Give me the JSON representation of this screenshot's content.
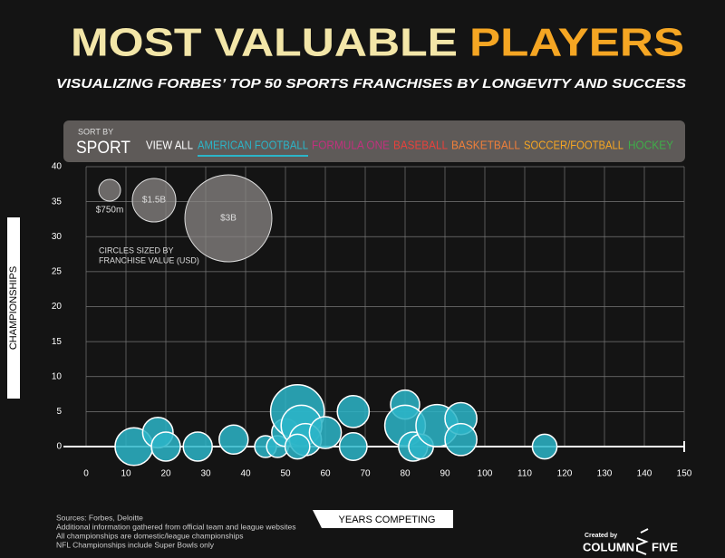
{
  "header": {
    "title_a": "MOST VALUABLE",
    "title_b": "PLAYERS",
    "subtitle": "VISUALIZING FORBES’ TOP 50 SPORTS FRANCHISES BY LONGEVITY AND SUCCESS"
  },
  "filter": {
    "sort_by": "SORT BY",
    "sort": "SPORT",
    "view_all": "VIEW ALL"
  },
  "chart_data": {
    "type": "bubble",
    "xlabel": "YEARS COMPETING",
    "ylabel": "CHAMPIONSHIPS",
    "xlim": [
      0,
      150
    ],
    "ylim": [
      0,
      40
    ],
    "xticks": [
      0,
      10,
      20,
      30,
      40,
      50,
      60,
      70,
      80,
      90,
      100,
      110,
      120,
      130,
      140,
      150
    ],
    "yticks": [
      0,
      5,
      10,
      15,
      20,
      25,
      30,
      35,
      40
    ],
    "grid": true,
    "series": [
      {
        "name": "AMERICAN FOOTBALL",
        "color": "#2bb5c8",
        "x": [
          12,
          18,
          20,
          28,
          37,
          45,
          48,
          50,
          53,
          54,
          55,
          53,
          60,
          67,
          67,
          80,
          80,
          82,
          84,
          88,
          94,
          94,
          115
        ],
        "values": [
          0,
          2,
          0,
          0,
          1,
          0,
          0,
          2,
          5,
          3,
          1,
          0,
          2,
          5,
          0,
          6,
          3,
          0,
          0,
          3,
          4,
          1,
          0
        ],
        "sizes": [
          1.3,
          1.05,
          1.0,
          1.0,
          1.0,
          0.75,
          0.75,
          0.95,
          1.85,
          1.4,
          1.1,
          0.85,
          1.1,
          1.1,
          0.95,
          1.0,
          1.4,
          1.0,
          0.85,
          1.45,
          1.1,
          1.1,
          0.85
        ]
      },
      {
        "name": "FORMULA ONE",
        "color": "#c2307e",
        "x": [],
        "values": [],
        "sizes": []
      },
      {
        "name": "BASEBALL",
        "color": "#e8413c",
        "x": [],
        "values": [],
        "sizes": []
      },
      {
        "name": "BASKETBALL",
        "color": "#ef7f3a",
        "x": [],
        "values": [],
        "sizes": []
      },
      {
        "name": "SOCCER/FOOTBALL",
        "color": "#f5a623",
        "x": [],
        "values": [],
        "sizes": []
      },
      {
        "name": "HOCKEY",
        "color": "#3fae49",
        "x": [],
        "values": [],
        "sizes": []
      }
    ],
    "size_legend": {
      "sizes": [
        0.75,
        1.5,
        3
      ],
      "labels": [
        "$750m",
        "$1.5B",
        "$3B"
      ],
      "note": [
        "CIRCLES SIZED BY",
        "FRANCHISE VALUE (USD)"
      ]
    }
  },
  "sources": [
    "Sources: Forbes, Deloitte",
    "Additional information gathered from official team and league websites",
    "All championships are domestic/league championships",
    "NFL Championships include Super Bowls only"
  ],
  "credit": {
    "created_by": "Created by",
    "brand_a": "COLUMN",
    "brand_b": "FIVE"
  }
}
